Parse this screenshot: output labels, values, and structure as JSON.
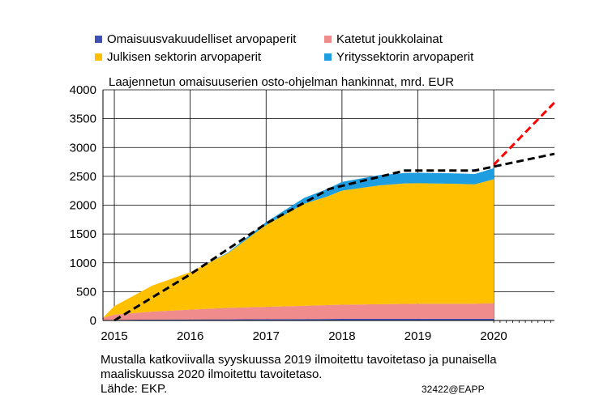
{
  "chart_data": {
    "type": "area",
    "title": "Laajennetun omaisuuserien osto-ohjelman hankinnat, mrd. EUR",
    "xlabel": "",
    "ylabel": "",
    "ylim": [
      0,
      4000
    ],
    "yticks": [
      0,
      500,
      1000,
      1500,
      2000,
      2500,
      3000,
      3500,
      4000
    ],
    "xticks": [
      "2015",
      "2016",
      "2017",
      "2018",
      "2019",
      "2020"
    ],
    "grid": true,
    "legend_placement": "top",
    "x": [
      2014.85,
      2015.0,
      2015.5,
      2016.0,
      2016.5,
      2017.0,
      2017.5,
      2017.8,
      2018.0,
      2018.5,
      2018.83,
      2019.0,
      2019.5,
      2019.75,
      2020.0
    ],
    "series": [
      {
        "name": "Omaisuusvakuudelliset arvopaperit",
        "color": "#3F51B5",
        "values": [
          5,
          10,
          15,
          18,
          20,
          22,
          25,
          27,
          28,
          28,
          28,
          29,
          29,
          29,
          30
        ]
      },
      {
        "name": "Katetut joukkolainat",
        "color": "#F08C8C",
        "values": [
          40,
          90,
          140,
          170,
          200,
          215,
          230,
          240,
          245,
          255,
          260,
          262,
          262,
          262,
          270
        ]
      },
      {
        "name": "Julkisen sektorin arvopaperit",
        "color": "#FFC000",
        "values": [
          0,
          150,
          450,
          650,
          950,
          1420,
          1770,
          1880,
          1980,
          2060,
          2090,
          2090,
          2080,
          2070,
          2150
        ]
      },
      {
        "name": "Yrityssektorin arvopaperit",
        "color": "#1E9EE0",
        "values": [
          0,
          0,
          0,
          0,
          10,
          50,
          100,
          130,
          150,
          180,
          180,
          180,
          180,
          180,
          190
        ]
      }
    ],
    "reference_lines": [
      {
        "color": "#000000",
        "style": "dashed",
        "points": [
          [
            2015.0,
            0
          ],
          [
            2016.0,
            800
          ],
          [
            2017.0,
            1680
          ],
          [
            2017.83,
            2280
          ],
          [
            2018.83,
            2600
          ],
          [
            2019.75,
            2600
          ],
          [
            2020.8,
            2890
          ]
        ]
      },
      {
        "color": "#FF0000",
        "style": "dashed",
        "points": [
          [
            2020.0,
            2700
          ],
          [
            2020.8,
            3780
          ]
        ]
      }
    ]
  },
  "footnote_lines": [
    "Mustalla katkoviivalla syyskuussa 2019 ilmoitettu tavoitetaso ja punaisella",
    "maaliskuussa 2020 ilmoitettu tavoitetaso.",
    "Lähde: EKP."
  ],
  "code": "32422@EAPP"
}
